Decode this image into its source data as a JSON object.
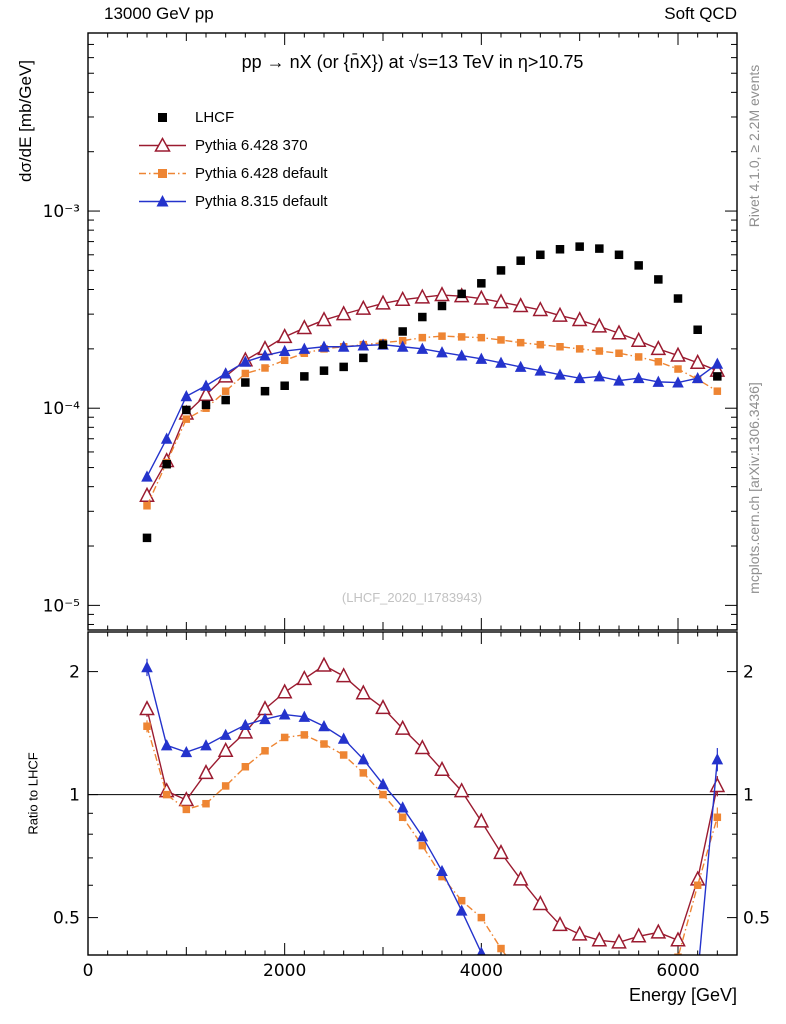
{
  "page": {
    "header_left": "13000 GeV pp",
    "header_right": "Soft QCD",
    "watermark": "(LHCF_2020_I1783943)",
    "side_note_top": "Rivet 4.1.0, ≥ 2.2M events",
    "side_note_bottom": "mcplots.cern.ch [arXiv:1306.3436]"
  },
  "chart_data": {
    "type": "line",
    "title": "pp → nX (or {n̄X}) at √s=13 TeV in η>10.75",
    "xlabel": "Energy [GeV]",
    "x_axis": {
      "range": [
        0,
        6600
      ],
      "ticks": [
        {
          "v": 0,
          "label": "0"
        },
        {
          "v": 2000,
          "label": "2000"
        },
        {
          "v": 4000,
          "label": "4000"
        },
        {
          "v": 6000,
          "label": "6000"
        }
      ],
      "minor_step": 200,
      "mid_step": 1000
    },
    "y_main": {
      "label": "dσ/dE [mb/GeV]",
      "scale": "log",
      "range": [
        7.5e-06,
        0.008
      ],
      "ticks": [
        {
          "v": 0.001,
          "label": "10⁻³"
        },
        {
          "v": 0.0001,
          "label": "10⁻⁴"
        },
        {
          "v": 1e-05,
          "label": "10⁻⁵"
        }
      ]
    },
    "y_ratio": {
      "label": "Ratio to LHCF",
      "scale": "log",
      "range": [
        0.405,
        2.5
      ],
      "reference": 1,
      "ticks": [
        {
          "v": 2,
          "label": "2"
        },
        {
          "v": 1,
          "label": "1"
        },
        {
          "v": 0.5,
          "label": "0.5"
        }
      ]
    },
    "x": [
      600,
      800,
      1000,
      1200,
      1400,
      1600,
      1800,
      2000,
      2200,
      2400,
      2600,
      2800,
      3000,
      3200,
      3400,
      3600,
      3800,
      4000,
      4200,
      4400,
      4600,
      4800,
      5000,
      5200,
      5400,
      5600,
      5800,
      6000,
      6200,
      6400
    ],
    "series": [
      {
        "name": "LHCF",
        "role": "data",
        "color": "#000000",
        "marker": "square",
        "msize": 8.5,
        "line": "none",
        "values": [
          2.2e-05,
          5.2e-05,
          9.8e-05,
          0.000104,
          0.00011,
          0.000135,
          0.000122,
          0.00013,
          0.000145,
          0.000155,
          0.000162,
          0.00018,
          0.00021,
          0.000245,
          0.00029,
          0.00033,
          0.00038,
          0.00043,
          0.0005,
          0.00056,
          0.0006,
          0.00064,
          0.00066,
          0.000645,
          0.0006,
          0.00053,
          0.00045,
          0.00036,
          0.00025,
          0.000145
        ]
      },
      {
        "name": "Pythia 6.428 370",
        "role": "mc",
        "color": "#9b1b30",
        "marker": "triangle-open",
        "msize": 11,
        "line": "solid",
        "values": [
          3.6e-05,
          5.4e-05,
          9.4e-05,
          0.000117,
          0.000145,
          0.000175,
          0.0002,
          0.00023,
          0.000255,
          0.00028,
          0.0003,
          0.00032,
          0.00034,
          0.000355,
          0.000365,
          0.000375,
          0.00037,
          0.00036,
          0.000345,
          0.00033,
          0.000315,
          0.000295,
          0.00028,
          0.00026,
          0.00024,
          0.00022,
          0.0002,
          0.000185,
          0.00017,
          0.000155
        ],
        "ratio": [
          1.62,
          1.02,
          0.97,
          1.13,
          1.28,
          1.42,
          1.62,
          1.78,
          1.92,
          2.07,
          1.95,
          1.77,
          1.63,
          1.45,
          1.3,
          1.15,
          1.02,
          0.86,
          0.72,
          0.62,
          0.54,
          0.48,
          0.455,
          0.44,
          0.435,
          0.45,
          0.46,
          0.44,
          0.62,
          1.05
        ],
        "ratio_err": {
          "0": 0.07,
          "29": 0.06
        }
      },
      {
        "name": "Pythia 6.428 default",
        "role": "mc",
        "color": "#ee8533",
        "marker": "square",
        "msize": 7.5,
        "line": "dashdot",
        "values": [
          3.2e-05,
          5.3e-05,
          8.8e-05,
          0.0001,
          0.000122,
          0.00015,
          0.00016,
          0.000175,
          0.00019,
          0.0002,
          0.000205,
          0.00021,
          0.000215,
          0.00022,
          0.000228,
          0.000232,
          0.00023,
          0.000228,
          0.000222,
          0.000215,
          0.00021,
          0.000205,
          0.0002,
          0.000195,
          0.00019,
          0.000182,
          0.000172,
          0.000158,
          0.00014,
          0.000122
        ],
        "ratio": [
          1.47,
          1.0,
          0.92,
          0.95,
          1.05,
          1.17,
          1.28,
          1.38,
          1.4,
          1.33,
          1.25,
          1.13,
          1.0,
          0.88,
          0.75,
          0.63,
          0.55,
          0.5,
          0.42,
          0.36,
          0.33,
          0.31,
          0.3,
          0.3,
          0.31,
          0.33,
          0.36,
          0.4,
          0.6,
          0.88
        ],
        "ratio_err": {
          "0": 0.05,
          "29": 0.05
        }
      },
      {
        "name": "Pythia 8.315 default",
        "role": "mc",
        "color": "#2433cc",
        "marker": "triangle",
        "msize": 10,
        "line": "solid",
        "values": [
          4.5e-05,
          7e-05,
          0.000115,
          0.00013,
          0.00015,
          0.000172,
          0.000185,
          0.000195,
          0.0002,
          0.000205,
          0.000205,
          0.000208,
          0.00021,
          0.000205,
          0.0002,
          0.000192,
          0.000185,
          0.000178,
          0.00017,
          0.000162,
          0.000155,
          0.000148,
          0.000142,
          0.000145,
          0.000138,
          0.000142,
          0.000136,
          0.000135,
          0.000142,
          0.000168
        ],
        "ratio": [
          2.05,
          1.32,
          1.27,
          1.32,
          1.4,
          1.48,
          1.53,
          1.57,
          1.55,
          1.47,
          1.37,
          1.22,
          1.06,
          0.93,
          0.79,
          0.65,
          0.52,
          0.41,
          0.34,
          0.29,
          0.26,
          0.23,
          0.22,
          0.22,
          0.23,
          0.26,
          0.3,
          0.33,
          0.36,
          1.22
        ],
        "ratio_err": {
          "0": 0.1,
          "29": 0.08
        }
      }
    ]
  }
}
